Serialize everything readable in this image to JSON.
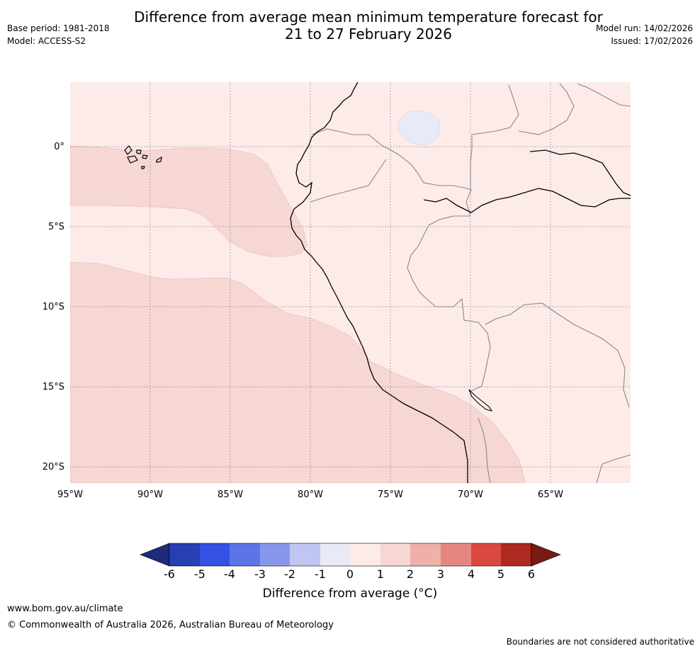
{
  "title_line1": "Difference from average mean minimum temperature forecast for",
  "title_line2": "21 to 27 February 2026",
  "base_period": "Base period: 1981-2018",
  "model": "Model: ACCESS-S2",
  "model_run": "Model run: 14/02/2026",
  "issued": "Issued: 17/02/2026",
  "map": {
    "lat_labels": [
      "0°",
      "5°S",
      "10°S",
      "15°S",
      "20°S"
    ],
    "lon_labels": [
      "95°W",
      "90°W",
      "85°W",
      "80°W",
      "75°W",
      "70°W",
      "65°W"
    ],
    "colors": {
      "ocean_anom_1_2": "#f6d7d3",
      "land_anom_0_1": "#fcebe9",
      "lake_neg": "#e8eaf8",
      "coast": "#000000",
      "border": "#888888",
      "grid": "#777777"
    }
  },
  "colorbar": {
    "labels": [
      "-6",
      "-5",
      "-4",
      "-3",
      "-2",
      "-1",
      "0",
      "1",
      "2",
      "3",
      "4",
      "5",
      "6"
    ],
    "colors": [
      "#1e2a7a",
      "#263fb3",
      "#3352e3",
      "#5d73e8",
      "#8897ec",
      "#bfc6f3",
      "#e8eaf8",
      "#fcebe9",
      "#f6d7d3",
      "#efb0aa",
      "#e6877f",
      "#d9493f",
      "#ad2a20",
      "#7a1a14"
    ],
    "title": "Difference from average (°C)"
  },
  "footer": {
    "website": "www.bom.gov.au/climate",
    "copyright": "© Commonwealth of Australia 2026, Australian Bureau of Meteorology",
    "disclaimer": "Boundaries are not considered authoritative"
  }
}
